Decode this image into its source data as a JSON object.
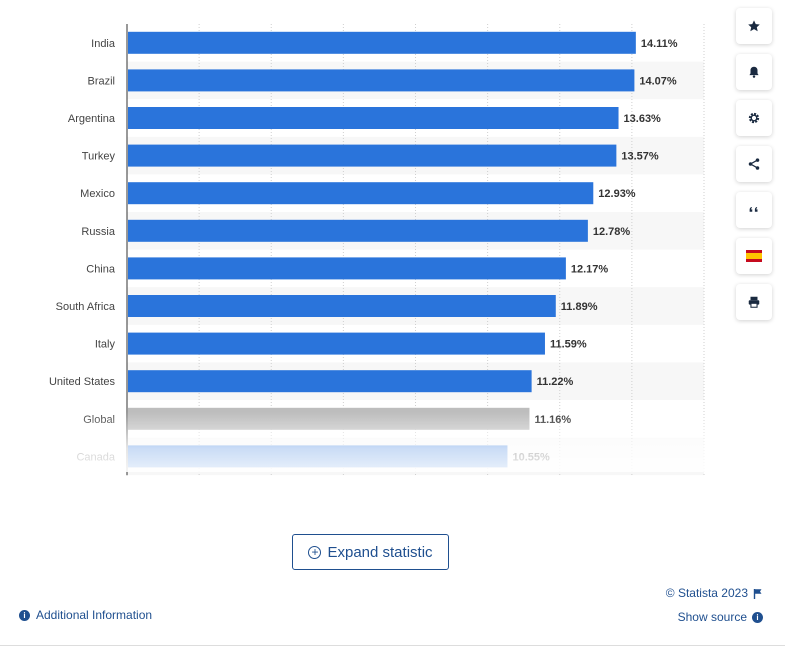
{
  "chart_data": {
    "type": "bar",
    "orientation": "horizontal",
    "categories": [
      "India",
      "Brazil",
      "Argentina",
      "Turkey",
      "Mexico",
      "Russia",
      "China",
      "South Africa",
      "Italy",
      "United States",
      "Global",
      "Canada"
    ],
    "values": [
      14.11,
      14.07,
      13.63,
      13.57,
      12.93,
      12.78,
      12.17,
      11.89,
      11.59,
      11.22,
      11.16,
      10.55
    ],
    "value_labels": [
      "14.11%",
      "14.07%",
      "13.63%",
      "13.57%",
      "12.93%",
      "12.78%",
      "12.17%",
      "11.89%",
      "11.59%",
      "11.22%",
      "11.16%",
      "10.55%"
    ],
    "highlight_category": "Global",
    "bar_color": "#2a74db",
    "highlight_color": "#bdbdbd",
    "xlim": [
      0,
      16
    ],
    "grid": "vertical dotted",
    "title": "",
    "xlabel": "",
    "ylabel": ""
  },
  "toolbar": {
    "buttons": [
      {
        "name": "favorite-button",
        "icon": "star-icon"
      },
      {
        "name": "notification-button",
        "icon": "bell-icon"
      },
      {
        "name": "settings-button",
        "icon": "gear-icon"
      },
      {
        "name": "share-button",
        "icon": "share-icon"
      },
      {
        "name": "cite-button",
        "icon": "quote-icon"
      },
      {
        "name": "language-button",
        "icon": "spain-flag-icon"
      },
      {
        "name": "print-button",
        "icon": "printer-icon"
      }
    ]
  },
  "footer": {
    "expand_label": "Expand statistic",
    "copyright": "© Statista 2023",
    "show_source": "Show source",
    "additional_info": "Additional Information"
  }
}
